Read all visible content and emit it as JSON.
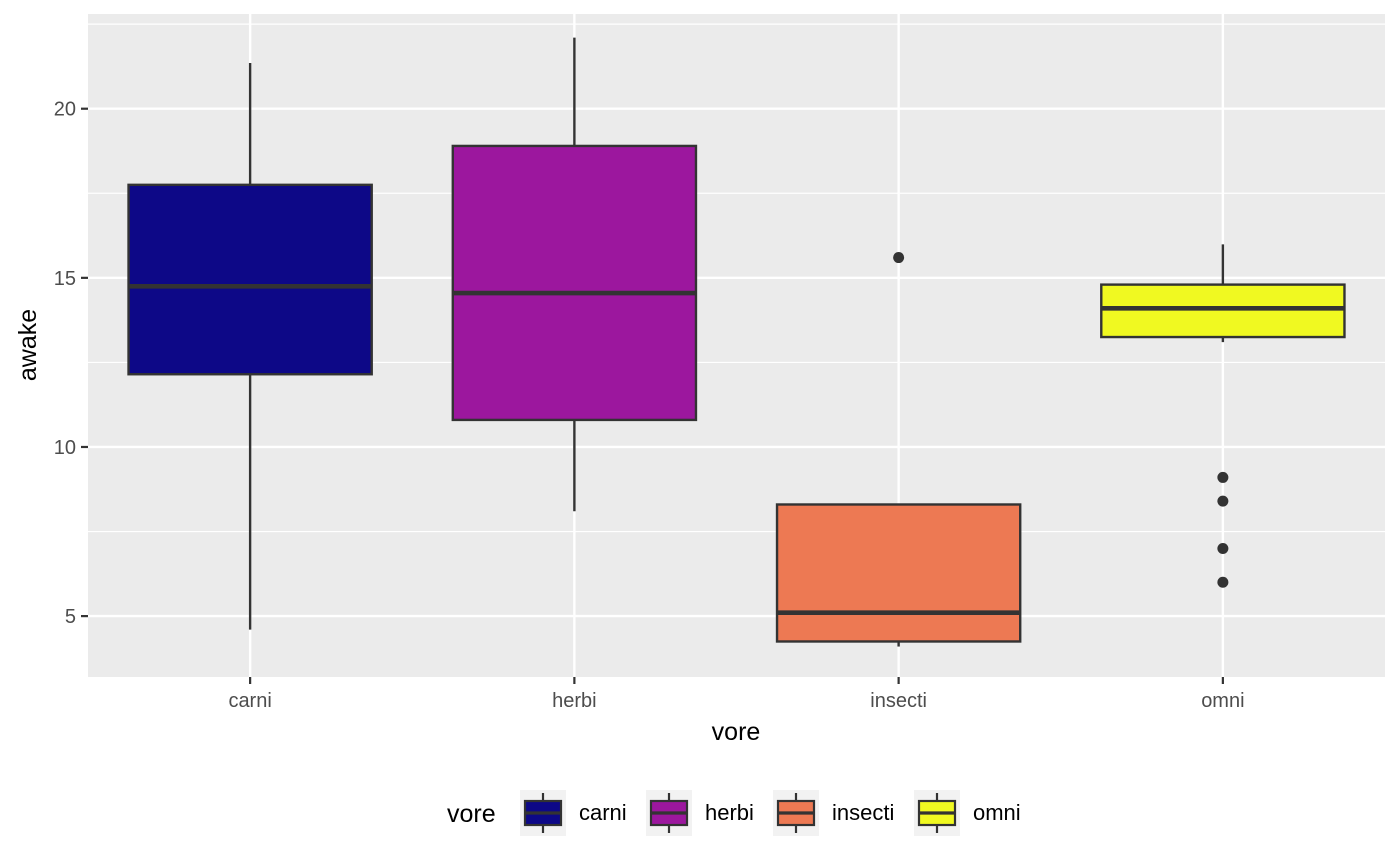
{
  "chart_data": {
    "type": "boxplot",
    "xlabel": "vore",
    "ylabel": "awake",
    "categories": [
      "carni",
      "herbi",
      "insecti",
      "omni"
    ],
    "ylim": [
      3.2,
      22.8
    ],
    "yticks": [
      5,
      10,
      15,
      20
    ],
    "grid": true,
    "legend": {
      "title": "vore",
      "position": "bottom",
      "entries": [
        "carni",
        "herbi",
        "insecti",
        "omni"
      ]
    },
    "series": [
      {
        "category": "carni",
        "color": "#0d0887",
        "whisker_low": 4.6,
        "q1": 12.15,
        "median": 14.75,
        "q3": 17.75,
        "whisker_high": 21.35,
        "outliers": []
      },
      {
        "category": "herbi",
        "color": "#9c179e",
        "whisker_low": 8.1,
        "q1": 10.8,
        "median": 14.55,
        "q3": 18.9,
        "whisker_high": 22.1,
        "outliers": []
      },
      {
        "category": "insecti",
        "color": "#ed7953",
        "whisker_low": 4.1,
        "q1": 4.25,
        "median": 5.1,
        "q3": 8.3,
        "whisker_high": 8.3,
        "outliers": [
          15.6
        ]
      },
      {
        "category": "omni",
        "color": "#f0f921",
        "whisker_low": 13.1,
        "q1": 13.25,
        "median": 14.1,
        "q3": 14.8,
        "whisker_high": 15.99,
        "outliers": [
          9.1,
          8.4,
          7.0,
          6.0
        ]
      }
    ]
  }
}
